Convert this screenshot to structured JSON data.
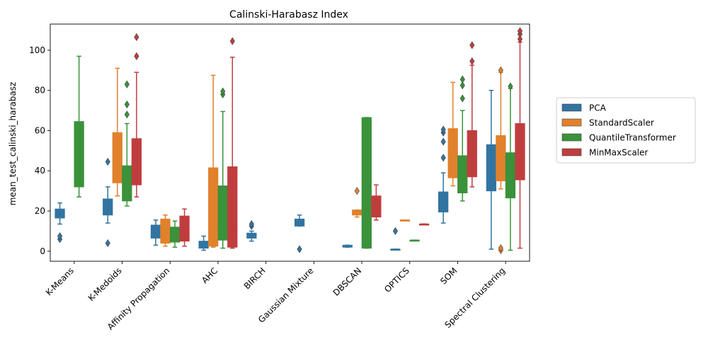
{
  "chart_data": {
    "type": "box",
    "title": "Calinski-Harabasz Index",
    "xlabel": "",
    "ylabel": "mean_test_calinski_harabasz",
    "ylim": [
      -5,
      113
    ],
    "yticks": [
      0,
      20,
      40,
      60,
      80,
      100
    ],
    "legend_position": "right",
    "categories": [
      "K-Means",
      "K-Medoids",
      "Affinity Propagation",
      "AHC",
      "BIRCH",
      "Gaussian Mixture",
      "DBSCAN",
      "OPTICS",
      "SOM",
      "Spectral Clustering"
    ],
    "series": [
      {
        "name": "PCA",
        "color": "#3274a1",
        "boxes": [
          {
            "whislo": 13.5,
            "q1": 16.5,
            "med": 18.5,
            "q3": 21,
            "whishi": 24,
            "fliers": [
              6,
              7.5
            ]
          },
          {
            "whislo": 14,
            "q1": 18,
            "med": 22,
            "q3": 26,
            "whishi": 32,
            "fliers": [
              4,
              44.5
            ]
          },
          {
            "whislo": 3,
            "q1": 6.5,
            "med": 10,
            "q3": 13,
            "whishi": 15.5,
            "fliers": []
          },
          {
            "whislo": 0.5,
            "q1": 1.5,
            "med": 3,
            "q3": 5,
            "whishi": 7.5,
            "fliers": []
          },
          {
            "whislo": 5,
            "q1": 6.5,
            "med": 7.5,
            "q3": 9,
            "whishi": 10,
            "fliers": [
              12.5,
              13.5
            ]
          },
          {
            "whislo": 12.5,
            "q1": 12.5,
            "med": 14,
            "q3": 16,
            "whishi": 18,
            "fliers": [
              1
            ]
          },
          {
            "whislo": 2,
            "q1": 2,
            "med": 2.5,
            "q3": 3,
            "whishi": 3,
            "fliers": []
          },
          {
            "whislo": 1,
            "q1": 1,
            "med": 1,
            "q3": 1,
            "whishi": 1,
            "fliers": [
              10
            ]
          },
          {
            "whislo": 14,
            "q1": 19.5,
            "med": 25,
            "q3": 29.5,
            "whishi": 39,
            "fliers": [
              46.5,
              54.5,
              59,
              60.5
            ]
          },
          {
            "whislo": 1,
            "q1": 30,
            "med": 45,
            "q3": 53,
            "whishi": 80,
            "fliers": []
          }
        ]
      },
      {
        "name": "StandardScaler",
        "color": "#e1812c",
        "boxes": [
          null,
          {
            "whislo": 27.5,
            "q1": 34,
            "med": 44,
            "q3": 59,
            "whishi": 91,
            "fliers": []
          },
          {
            "whislo": 2.5,
            "q1": 4,
            "med": 11,
            "q3": 16,
            "whishi": 18,
            "fliers": []
          },
          {
            "whislo": 2,
            "q1": 2.5,
            "med": 10,
            "q3": 41.5,
            "whishi": 87.5,
            "fliers": []
          },
          null,
          null,
          {
            "whislo": 17,
            "q1": 18,
            "med": 19.5,
            "q3": 20.5,
            "whishi": 20.5,
            "fliers": [
              30
            ]
          },
          {
            "whislo": 15.5,
            "q1": 15.5,
            "med": 15.5,
            "q3": 15.5,
            "whishi": 15.5,
            "fliers": []
          },
          {
            "whislo": 32.5,
            "q1": 36.5,
            "med": 45,
            "q3": 61,
            "whishi": 84,
            "fliers": []
          },
          {
            "whislo": 31,
            "q1": 35,
            "med": 42,
            "q3": 57.5,
            "whishi": 89,
            "fliers": [
              0.5,
              1.5,
              90
            ]
          }
        ]
      },
      {
        "name": "QuantileTransformer",
        "color": "#3a923a",
        "boxes": [
          {
            "whislo": 27,
            "q1": 32,
            "med": 44,
            "q3": 64.5,
            "whishi": 97,
            "fliers": []
          },
          {
            "whislo": 22.5,
            "q1": 25,
            "med": 34,
            "q3": 42.5,
            "whishi": 63.5,
            "fliers": [
              68,
              73,
              83
            ]
          },
          {
            "whislo": 2,
            "q1": 4.5,
            "med": 9,
            "q3": 12,
            "whishi": 15,
            "fliers": []
          },
          {
            "whislo": 1.5,
            "q1": 5.5,
            "med": 15,
            "q3": 32.5,
            "whishi": 69.5,
            "fliers": [
              78,
              79.5
            ]
          },
          null,
          null,
          {
            "whislo": 1.5,
            "q1": 1.5,
            "med": 34,
            "q3": 66.5,
            "whishi": 66.5,
            "fliers": []
          },
          {
            "whislo": 5.5,
            "q1": 5.5,
            "med": 5.5,
            "q3": 5.5,
            "whishi": 5.5,
            "fliers": []
          },
          {
            "whislo": 25,
            "q1": 29,
            "med": 35,
            "q3": 47.5,
            "whishi": 70,
            "fliers": [
              76,
              82.5,
              85.5
            ]
          },
          {
            "whislo": 0.5,
            "q1": 26.5,
            "med": 35,
            "q3": 49,
            "whishi": 81,
            "fliers": [
              82
            ]
          }
        ]
      },
      {
        "name": "MinMaxScaler",
        "color": "#c03d3e",
        "boxes": [
          null,
          {
            "whislo": 27,
            "q1": 33,
            "med": 40,
            "q3": 56,
            "whishi": 89,
            "fliers": [
              97,
              106.5
            ]
          },
          {
            "whislo": 2.5,
            "q1": 5,
            "med": 10,
            "q3": 17.5,
            "whishi": 21,
            "fliers": []
          },
          {
            "whislo": 1.5,
            "q1": 2,
            "med": 10,
            "q3": 42,
            "whishi": 96.5,
            "fliers": [
              104.5
            ]
          },
          null,
          null,
          {
            "whislo": 15.5,
            "q1": 17,
            "med": 20,
            "q3": 27.5,
            "whishi": 33,
            "fliers": []
          },
          {
            "whislo": 13.5,
            "q1": 13.5,
            "med": 13.5,
            "q3": 13.5,
            "whishi": 13.5,
            "fliers": []
          },
          {
            "whislo": 32,
            "q1": 37,
            "med": 43,
            "q3": 60,
            "whishi": 92.5,
            "fliers": [
              94.5,
              102.5
            ]
          },
          {
            "whislo": 1.5,
            "q1": 35.5,
            "med": 45,
            "q3": 63.5,
            "whishi": 104,
            "fliers": [
              105.5,
              108,
              109.5
            ]
          }
        ]
      }
    ]
  }
}
